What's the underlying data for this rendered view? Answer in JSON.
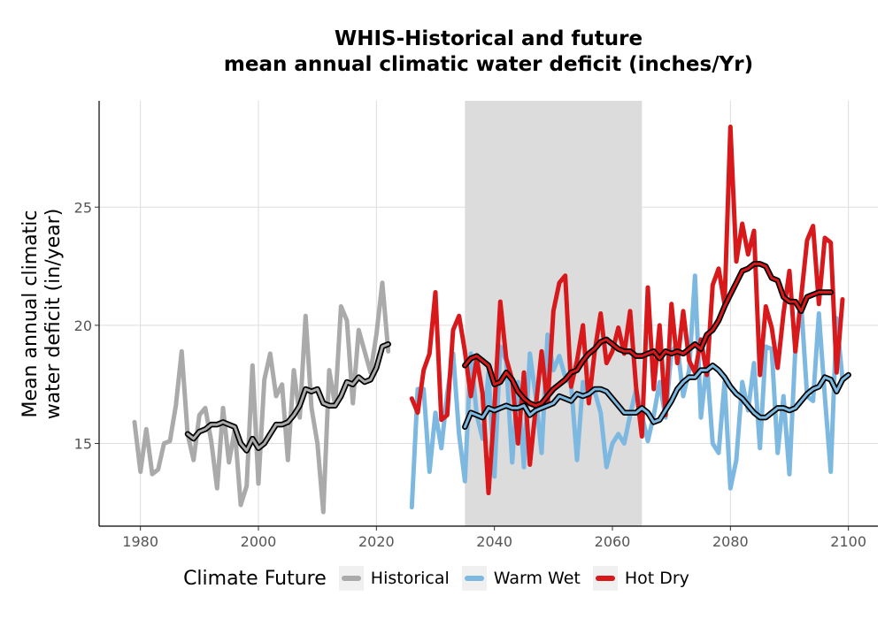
{
  "chart_data": {
    "type": "line",
    "title": "WHIS-Historical and future",
    "subtitle": "mean annual climatic water deficit (inches/Yr)",
    "ylabel_line1": "Mean annual climatic",
    "ylabel_line2": "water deficit (in/year)",
    "xlim": [
      1973,
      2105
    ],
    "ylim": [
      11.5,
      29.5
    ],
    "xticks": [
      1980,
      2000,
      2020,
      2040,
      2060,
      2080,
      2100
    ],
    "yticks": [
      15,
      20,
      25
    ],
    "grid": true,
    "shaded_period": [
      2035,
      2065
    ],
    "legend": {
      "title": "Climate Future",
      "position": "bottom",
      "entries": [
        "Historical",
        "Warm Wet",
        "Hot Dry"
      ]
    },
    "series": [
      {
        "name": "Historical",
        "color": "#aaaaaa",
        "x_start": 1979,
        "values": [
          15.9,
          13.8,
          15.6,
          13.7,
          13.9,
          15.0,
          15.1,
          16.6,
          18.9,
          15.4,
          14.3,
          16.2,
          16.5,
          15.1,
          13.1,
          16.5,
          14.2,
          15.6,
          12.4,
          13.2,
          18.3,
          13.3,
          17.7,
          18.8,
          17.0,
          17.5,
          14.3,
          18.1,
          16.1,
          20.4,
          16.5,
          15.0,
          12.1,
          18.1,
          16.6,
          20.8,
          20.2,
          16.7,
          19.8,
          18.9,
          18.0,
          19.6,
          21.8,
          18.9
        ]
      },
      {
        "name": "Historical (smoothed)",
        "color": "#aaaaaa",
        "x_start": 1988,
        "values": [
          15.4,
          15.2,
          15.5,
          15.6,
          15.8,
          15.8,
          15.9,
          15.8,
          15.7,
          15.0,
          14.7,
          15.2,
          14.8,
          15.0,
          15.4,
          15.8,
          15.8,
          15.9,
          16.2,
          16.6,
          17.3,
          17.2,
          17.3,
          16.7,
          16.6,
          16.6,
          17.0,
          17.6,
          17.5,
          17.8,
          17.6,
          17.7,
          18.2,
          19.1,
          19.2
        ]
      },
      {
        "name": "Warm Wet",
        "color": "#7db8e0",
        "x_start": 2026,
        "values": [
          12.3,
          17.3,
          17.3,
          13.8,
          16.3,
          14.8,
          17.1,
          18.8,
          15.4,
          13.4,
          18.8,
          16.2,
          15.2,
          18.0,
          13.6,
          19.1,
          18.5,
          14.2,
          17.6,
          14.0,
          18.8,
          17.0,
          14.6,
          19.6,
          18.1,
          18.7,
          17.8,
          17.5,
          14.3,
          17.6,
          17.1,
          17.2,
          16.3,
          14.0,
          15.0,
          15.4,
          15.0,
          16.2,
          17.3,
          16.2,
          15.1,
          16.2,
          17.6,
          16.1,
          18.9,
          19.2,
          17.0,
          18.1,
          22.1,
          16.1,
          18.4,
          15.0,
          14.6,
          17.6,
          13.1,
          14.3,
          17.6,
          16.4,
          18.4,
          14.8,
          19.1,
          19.0,
          14.6,
          17.0,
          13.7,
          19.0,
          20.9,
          17.0,
          16.8,
          20.5,
          17.0,
          13.8,
          20.3,
          17.7
        ]
      },
      {
        "name": "Warm Wet (smoothed)",
        "color": "#7db8e0",
        "x_start": 2035,
        "values": [
          15.7,
          16.3,
          16.2,
          16.1,
          16.5,
          16.4,
          16.5,
          16.6,
          16.5,
          16.5,
          16.6,
          16.2,
          16.4,
          16.5,
          16.6,
          16.7,
          17.0,
          16.9,
          16.8,
          17.1,
          17.0,
          17.1,
          17.3,
          17.3,
          17.2,
          16.9,
          16.6,
          16.3,
          16.3,
          16.3,
          16.5,
          16.3,
          15.9,
          16.0,
          16.4,
          16.8,
          17.3,
          17.6,
          17.8,
          17.8,
          18.1,
          18.1,
          18.3,
          18.1,
          17.8,
          17.4,
          17.1,
          16.9,
          16.6,
          16.3,
          16.1,
          16.1,
          16.3,
          16.5,
          16.5,
          16.4,
          16.5,
          16.8,
          17.1,
          17.3,
          17.4,
          17.8,
          17.7,
          17.2,
          17.7,
          17.9
        ]
      },
      {
        "name": "Hot Dry",
        "color": "#d7191c",
        "x_start": 2026,
        "values": [
          16.9,
          16.3,
          18.1,
          18.8,
          21.4,
          16.0,
          16.2,
          19.8,
          20.4,
          18.9,
          17.0,
          18.6,
          17.1,
          12.9,
          16.5,
          21.0,
          18.6,
          17.7,
          15.0,
          18.0,
          14.1,
          16.5,
          18.9,
          16.6,
          20.6,
          21.8,
          22.1,
          17.4,
          18.5,
          20.0,
          16.7,
          18.9,
          20.5,
          18.4,
          18.9,
          19.9,
          18.8,
          20.6,
          17.4,
          15.3,
          21.6,
          17.3,
          20.0,
          16.2,
          20.9,
          18.4,
          20.6,
          18.5,
          18.0,
          19.4,
          17.9,
          21.7,
          22.4,
          20.9,
          28.4,
          22.7,
          24.3,
          23.0,
          24.0,
          17.9,
          20.8,
          19.9,
          18.2,
          20.5,
          22.3,
          18.9,
          21.2,
          23.6,
          24.2,
          20.9,
          23.7,
          23.5,
          18.0,
          21.1
        ]
      },
      {
        "name": "Hot Dry (smoothed)",
        "color": "#d7191c",
        "x_start": 2035,
        "values": [
          18.3,
          18.6,
          18.7,
          18.5,
          18.3,
          17.5,
          17.6,
          18.0,
          17.7,
          17.2,
          16.9,
          16.7,
          16.6,
          16.7,
          17.0,
          17.3,
          17.5,
          17.7,
          18.0,
          18.1,
          18.5,
          18.8,
          19.0,
          19.3,
          19.4,
          19.2,
          19.0,
          18.9,
          18.9,
          18.7,
          18.7,
          18.8,
          18.9,
          18.6,
          18.9,
          18.8,
          18.9,
          18.8,
          19.0,
          19.2,
          19.0,
          19.6,
          19.8,
          20.2,
          20.8,
          21.3,
          21.8,
          22.3,
          22.4,
          22.6,
          22.6,
          22.5,
          22.0,
          21.9,
          21.2,
          21.0,
          21.0,
          20.6,
          21.2,
          21.3,
          21.4,
          21.4,
          21.4
        ]
      }
    ]
  }
}
